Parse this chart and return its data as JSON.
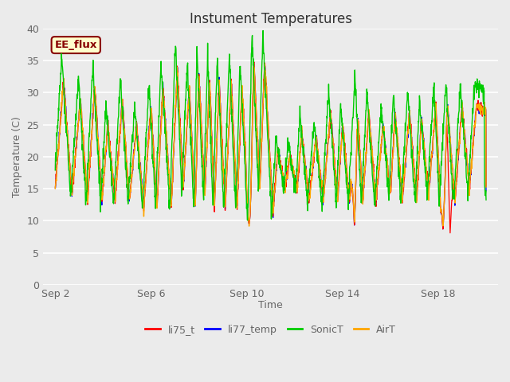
{
  "title": "Instument Temperatures",
  "xlabel": "Time",
  "ylabel": "Temperature (C)",
  "ylim": [
    0,
    40
  ],
  "yticks": [
    0,
    5,
    10,
    15,
    20,
    25,
    30,
    35,
    40
  ],
  "background_color": "#ebebeb",
  "plot_bg_color": "#ebebeb",
  "title_fontsize": 12,
  "axis_label_fontsize": 9,
  "tick_fontsize": 9,
  "tick_color": "#666666",
  "title_color": "#333333",
  "legend_labels": [
    "li75_t",
    "li77_temp",
    "SonicT",
    "AirT"
  ],
  "legend_colors": [
    "#ff0000",
    "#0000ff",
    "#00cc00",
    "#ffa500"
  ],
  "annotation_text": "EE_flux",
  "annotation_box_color": "#ffffcc",
  "annotation_border_color": "#880000",
  "xtick_labels": [
    "Sep 2",
    "Sep 6",
    "Sep 10",
    "Sep 14",
    "Sep 18"
  ],
  "xtick_positions": [
    1,
    5,
    9,
    13,
    17
  ],
  "xlim": [
    0.5,
    19.5
  ],
  "grid_color": "#ffffff",
  "grid_linewidth": 1.2
}
